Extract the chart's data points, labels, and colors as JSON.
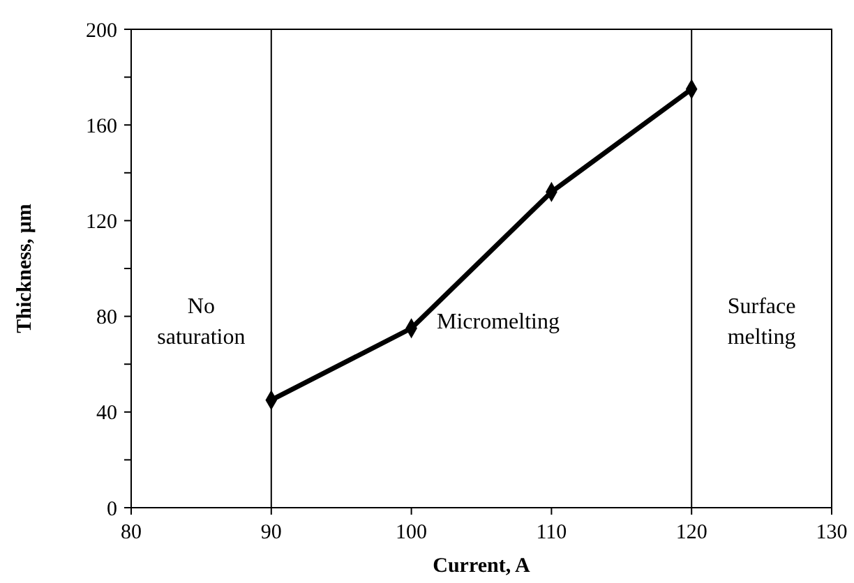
{
  "chart_data": {
    "type": "line",
    "xlabel": "Current, A",
    "ylabel": "Thickness, µm",
    "x": [
      90,
      100,
      110,
      120
    ],
    "series": [
      {
        "color": "#000000",
        "values": [
          45,
          75,
          132,
          175
        ]
      }
    ],
    "marker": "diamond",
    "line_style": "solid",
    "grid": false,
    "xlim": [
      80,
      130
    ],
    "xticks": [
      80,
      90,
      100,
      110,
      120,
      130
    ],
    "ylim": [
      0,
      200
    ],
    "yticks": [
      0,
      {
        "value": 20,
        "label": null
      },
      40,
      {
        "value": 60,
        "label": null
      },
      80,
      {
        "value": 100,
        "label": null
      },
      120,
      {
        "value": 140,
        "label": null
      },
      160,
      {
        "value": 180,
        "label": null
      },
      200
    ],
    "ref_lines": [
      {
        "axis": "x",
        "value": 90
      },
      {
        "axis": "x",
        "value": 120
      }
    ],
    "annotations": [
      "No saturation",
      "Micromelting",
      "Surface melting"
    ]
  }
}
